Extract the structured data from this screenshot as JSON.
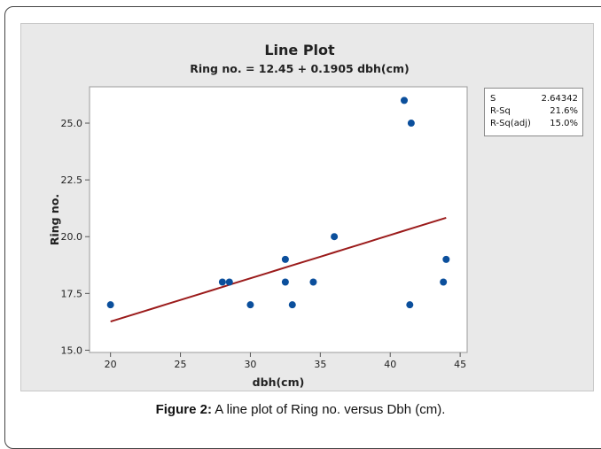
{
  "caption": {
    "label": "Figure 2:",
    "text": "A line plot of Ring no. versus Dbh (cm)."
  },
  "stats": [
    {
      "label": "S",
      "value": "2.64342"
    },
    {
      "label": "R-Sq",
      "value": "21.6%"
    },
    {
      "label": "R-Sq(adj)",
      "value": "15.0%"
    }
  ],
  "chart_data": {
    "type": "scatter",
    "title": "Line Plot",
    "subtitle": "Ring no. = 12.45 + 0.1905 dbh(cm)",
    "xlabel": "dbh(cm)",
    "ylabel": "Ring no.",
    "xlim": [
      18.5,
      45.5
    ],
    "ylim": [
      14.9,
      26.6
    ],
    "xticks": [
      20,
      25,
      30,
      35,
      40,
      45
    ],
    "xtick_labels": [
      "20",
      "25",
      "30",
      "35",
      "40",
      "45"
    ],
    "yticks": [
      15.0,
      17.5,
      20.0,
      22.5,
      25.0
    ],
    "ytick_labels": [
      "15.0",
      "17.5",
      "20.0",
      "22.5",
      "25.0"
    ],
    "grid": false,
    "points": [
      {
        "x": 20,
        "y": 17
      },
      {
        "x": 28,
        "y": 18
      },
      {
        "x": 28.5,
        "y": 18
      },
      {
        "x": 30,
        "y": 17
      },
      {
        "x": 32.5,
        "y": 19
      },
      {
        "x": 32.5,
        "y": 18
      },
      {
        "x": 33,
        "y": 17
      },
      {
        "x": 34.5,
        "y": 18
      },
      {
        "x": 36,
        "y": 20
      },
      {
        "x": 41,
        "y": 26
      },
      {
        "x": 41.5,
        "y": 25
      },
      {
        "x": 41.4,
        "y": 17
      },
      {
        "x": 43.8,
        "y": 18
      },
      {
        "x": 44,
        "y": 19
      }
    ],
    "fit_line": {
      "intercept": 12.45,
      "slope": 0.1905,
      "x_range": [
        20,
        44
      ]
    },
    "point_color": "#0b4f9c",
    "line_color": "#9b1b1b"
  }
}
